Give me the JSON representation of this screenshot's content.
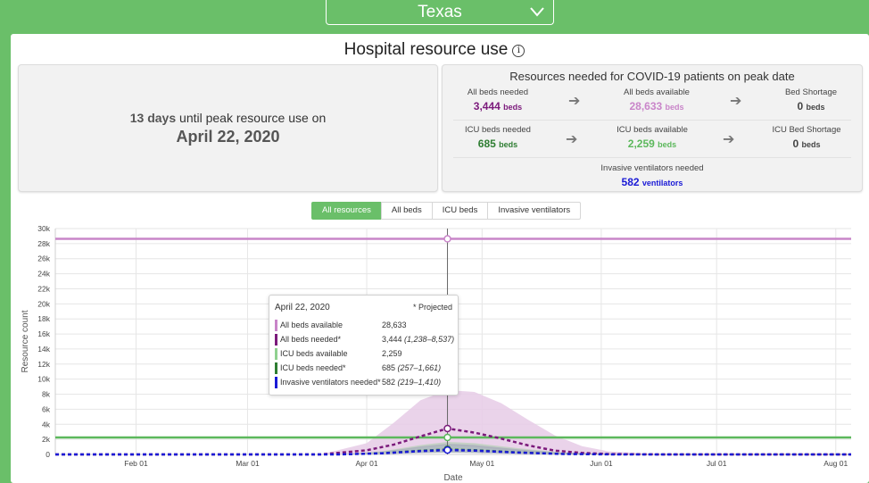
{
  "header": {
    "state": "Texas"
  },
  "page_title": "Hospital resource use",
  "peak": {
    "days": "13",
    "days_unit": "days",
    "until_text": "until peak resource use on",
    "date": "April 22, 2020"
  },
  "resources": {
    "title": "Resources needed for COVID-19 patients on peak date",
    "all_beds_needed": {
      "label": "All beds needed",
      "value": "3,444",
      "unit": "beds"
    },
    "all_beds_available": {
      "label": "All beds available",
      "value": "28,633",
      "unit": "beds"
    },
    "bed_shortage": {
      "label": "Bed Shortage",
      "value": "0",
      "unit": "beds"
    },
    "icu_beds_needed": {
      "label": "ICU beds needed",
      "value": "685",
      "unit": "beds"
    },
    "icu_beds_available": {
      "label": "ICU beds available",
      "value": "2,259",
      "unit": "beds"
    },
    "icu_bed_shortage": {
      "label": "ICU Bed Shortage",
      "value": "0",
      "unit": "beds"
    },
    "ventilators_needed": {
      "label": "Invasive ventilators needed",
      "value": "582",
      "unit": "ventilators"
    }
  },
  "tabs": [
    "All resources",
    "All beds",
    "ICU beds",
    "Invasive ventilators"
  ],
  "tooltip": {
    "date": "April 22, 2020",
    "note": "* Projected",
    "rows": [
      {
        "label": "All beds available",
        "value": "28,633",
        "range": ""
      },
      {
        "label": "All beds needed*",
        "value": "3,444",
        "range": "(1,238–8,537)"
      },
      {
        "label": "ICU beds available",
        "value": "2,259",
        "range": ""
      },
      {
        "label": "ICU beds needed*",
        "value": "685",
        "range": "(257–1,661)"
      },
      {
        "label": "Invasive ventilators needed*",
        "value": "582",
        "range": "(219–1,410)"
      }
    ]
  },
  "colors": {
    "accent": "#6abf69",
    "all_beds_available": "#c985c9",
    "all_beds_needed": "#7b1a7b",
    "all_beds_band": "#e6cbe6",
    "icu_available": "#5cb85c",
    "icu_needed": "#2e7d32",
    "ventilators": "#1a1ad6",
    "crosshair": "#666666"
  },
  "chart_data": {
    "type": "area",
    "title": "",
    "xlabel": "Date",
    "ylabel": "Resource count",
    "ylim": [
      0,
      30000
    ],
    "xlim": [
      "2020-01-11",
      "2020-08-05"
    ],
    "x_ticks": [
      "Feb 01",
      "Mar 01",
      "Apr 01",
      "May 01",
      "Jun 01",
      "Jul 01",
      "Aug 01"
    ],
    "y_ticks": [
      "0",
      "2k",
      "4k",
      "6k",
      "8k",
      "10k",
      "12k",
      "14k",
      "16k",
      "18k",
      "20k",
      "22k",
      "24k",
      "26k",
      "28k",
      "30k"
    ],
    "hover_date": "2020-04-22",
    "series": [
      {
        "name": "All beds available",
        "kind": "constant",
        "value": 28633,
        "color_key": "all_beds_available"
      },
      {
        "name": "ICU beds available",
        "kind": "constant",
        "value": 2259,
        "color_key": "icu_available"
      },
      {
        "name": "All beds needed",
        "kind": "projection",
        "color_key": "all_beds_needed",
        "points": [
          [
            "2020-01-11",
            0
          ],
          [
            "2020-03-20",
            0
          ],
          [
            "2020-04-01",
            550
          ],
          [
            "2020-04-08",
            1300
          ],
          [
            "2020-04-15",
            2400
          ],
          [
            "2020-04-22",
            3444
          ],
          [
            "2020-04-29",
            2900
          ],
          [
            "2020-05-06",
            2100
          ],
          [
            "2020-05-13",
            1200
          ],
          [
            "2020-05-20",
            500
          ],
          [
            "2020-05-27",
            200
          ],
          [
            "2020-06-03",
            50
          ],
          [
            "2020-06-17",
            0
          ],
          [
            "2020-08-05",
            0
          ]
        ],
        "upper": [
          [
            "2020-03-20",
            0
          ],
          [
            "2020-04-01",
            1500
          ],
          [
            "2020-04-08",
            4200
          ],
          [
            "2020-04-15",
            7200
          ],
          [
            "2020-04-22",
            8537
          ],
          [
            "2020-04-29",
            8300
          ],
          [
            "2020-05-06",
            6800
          ],
          [
            "2020-05-13",
            4600
          ],
          [
            "2020-05-20",
            2500
          ],
          [
            "2020-05-27",
            1100
          ],
          [
            "2020-06-03",
            400
          ],
          [
            "2020-06-17",
            0
          ]
        ],
        "lower": [
          [
            "2020-03-20",
            0
          ],
          [
            "2020-04-01",
            150
          ],
          [
            "2020-04-08",
            450
          ],
          [
            "2020-04-15",
            900
          ],
          [
            "2020-04-22",
            1238
          ],
          [
            "2020-04-29",
            1000
          ],
          [
            "2020-05-06",
            650
          ],
          [
            "2020-05-13",
            320
          ],
          [
            "2020-05-20",
            120
          ],
          [
            "2020-05-27",
            40
          ],
          [
            "2020-06-03",
            0
          ],
          [
            "2020-06-17",
            0
          ]
        ]
      },
      {
        "name": "ICU beds needed",
        "kind": "projection",
        "color_key": "icu_needed",
        "points": [
          [
            "2020-01-11",
            0
          ],
          [
            "2020-03-25",
            0
          ],
          [
            "2020-04-05",
            180
          ],
          [
            "2020-04-15",
            520
          ],
          [
            "2020-04-22",
            685
          ],
          [
            "2020-04-29",
            590
          ],
          [
            "2020-05-10",
            300
          ],
          [
            "2020-05-22",
            80
          ],
          [
            "2020-06-05",
            0
          ],
          [
            "2020-08-05",
            0
          ]
        ],
        "upper": [
          [
            "2020-03-25",
            0
          ],
          [
            "2020-04-05",
            420
          ],
          [
            "2020-04-15",
            1250
          ],
          [
            "2020-04-22",
            1661
          ],
          [
            "2020-04-29",
            1500
          ],
          [
            "2020-05-10",
            850
          ],
          [
            "2020-05-22",
            250
          ],
          [
            "2020-06-05",
            0
          ]
        ],
        "lower": [
          [
            "2020-03-25",
            0
          ],
          [
            "2020-04-05",
            60
          ],
          [
            "2020-04-15",
            200
          ],
          [
            "2020-04-22",
            257
          ],
          [
            "2020-04-29",
            210
          ],
          [
            "2020-05-10",
            100
          ],
          [
            "2020-05-22",
            20
          ],
          [
            "2020-06-05",
            0
          ]
        ]
      },
      {
        "name": "Invasive ventilators needed",
        "kind": "projection",
        "color_key": "ventilators",
        "points": [
          [
            "2020-01-11",
            0
          ],
          [
            "2020-03-25",
            0
          ],
          [
            "2020-04-05",
            150
          ],
          [
            "2020-04-15",
            440
          ],
          [
            "2020-04-22",
            582
          ],
          [
            "2020-04-29",
            500
          ],
          [
            "2020-05-10",
            250
          ],
          [
            "2020-05-22",
            60
          ],
          [
            "2020-06-05",
            0
          ],
          [
            "2020-08-05",
            0
          ]
        ],
        "upper": [
          [
            "2020-03-25",
            0
          ],
          [
            "2020-04-05",
            360
          ],
          [
            "2020-04-15",
            1050
          ],
          [
            "2020-04-22",
            1410
          ],
          [
            "2020-04-29",
            1250
          ],
          [
            "2020-05-10",
            700
          ],
          [
            "2020-05-22",
            200
          ],
          [
            "2020-06-05",
            0
          ]
        ],
        "lower": [
          [
            "2020-03-25",
            0
          ],
          [
            "2020-04-05",
            50
          ],
          [
            "2020-04-15",
            170
          ],
          [
            "2020-04-22",
            219
          ],
          [
            "2020-04-29",
            180
          ],
          [
            "2020-05-10",
            80
          ],
          [
            "2020-05-22",
            15
          ],
          [
            "2020-06-05",
            0
          ]
        ]
      }
    ]
  }
}
